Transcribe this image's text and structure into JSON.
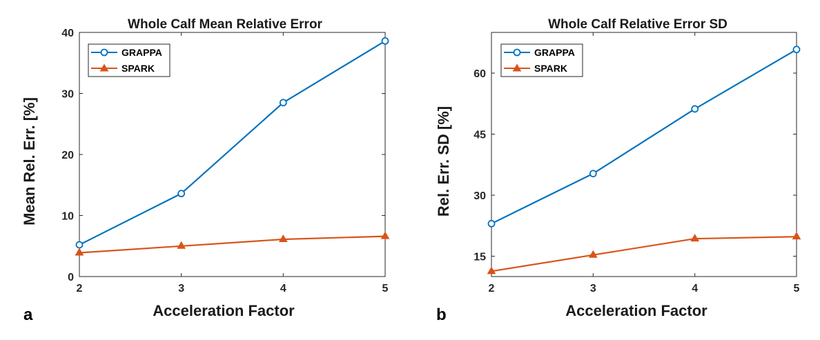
{
  "colors": {
    "grappa": "#0072BD",
    "spark": "#D95319",
    "axis": "#262626"
  },
  "chart_data": [
    {
      "type": "line",
      "panel_label": "a",
      "title": "Whole Calf Mean Relative Error",
      "xlabel": "Acceleration Factor",
      "ylabel": "Mean Rel. Err. [%]",
      "x": [
        2,
        3,
        4,
        5
      ],
      "xlim": [
        2,
        5
      ],
      "ylim": [
        0,
        40
      ],
      "xticks": [
        "2",
        "3",
        "4",
        "5"
      ],
      "yticks": [
        "0",
        "10",
        "20",
        "30",
        "40"
      ],
      "ytick_values": [
        0,
        10,
        20,
        30,
        40
      ],
      "legend_position": "top-left",
      "series": [
        {
          "name": "GRAPPA",
          "marker": "circle",
          "values": [
            5.2,
            13.6,
            28.5,
            38.6
          ]
        },
        {
          "name": "SPARK",
          "marker": "triangle",
          "values": [
            3.9,
            5.0,
            6.1,
            6.6
          ]
        }
      ]
    },
    {
      "type": "line",
      "panel_label": "b",
      "title": "Whole Calf Relative Error SD",
      "xlabel": "Acceleration Factor",
      "ylabel": "Rel. Err. SD [%]",
      "x": [
        2,
        3,
        4,
        5
      ],
      "xlim": [
        2,
        5
      ],
      "ylim": [
        10,
        70
      ],
      "xticks": [
        "2",
        "3",
        "4",
        "5"
      ],
      "yticks": [
        "15",
        "30",
        "45",
        "60"
      ],
      "ytick_values": [
        15,
        30,
        45,
        60
      ],
      "legend_position": "top-left",
      "series": [
        {
          "name": "GRAPPA",
          "marker": "circle",
          "values": [
            23.0,
            35.3,
            51.2,
            65.8
          ]
        },
        {
          "name": "SPARK",
          "marker": "triangle",
          "values": [
            11.3,
            15.3,
            19.3,
            19.8
          ]
        }
      ]
    }
  ]
}
